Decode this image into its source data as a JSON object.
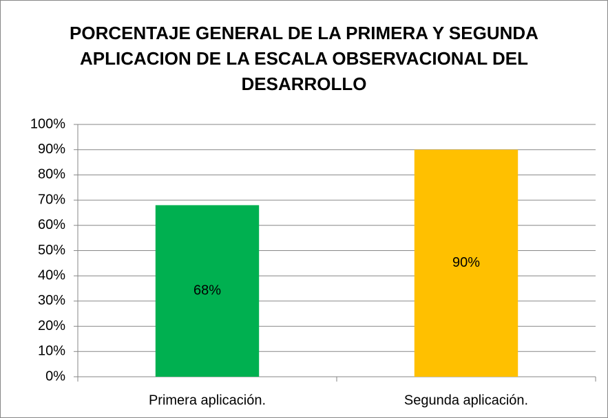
{
  "chart_data": {
    "type": "bar",
    "title": "PORCENTAJE  GENERAL DE LA PRIMERA Y SEGUNDA APLICACION DE LA ESCALA OBSERVACIONAL DEL DESARROLLO",
    "categories": [
      "Primera aplicación.",
      "Segunda aplicación."
    ],
    "values": [
      68,
      90
    ],
    "value_labels": [
      "68%",
      "90%"
    ],
    "colors": [
      "#00b050",
      "#ffc000"
    ],
    "ylim": [
      0,
      100
    ],
    "yticks": [
      {
        "value": 0,
        "label": "0%"
      },
      {
        "value": 10,
        "label": "10%"
      },
      {
        "value": 20,
        "label": "20%"
      },
      {
        "value": 30,
        "label": "30%"
      },
      {
        "value": 40,
        "label": "40%"
      },
      {
        "value": 50,
        "label": "50%"
      },
      {
        "value": 60,
        "label": "60%"
      },
      {
        "value": 70,
        "label": "70%"
      },
      {
        "value": 80,
        "label": "80%"
      },
      {
        "value": 90,
        "label": "90%"
      },
      {
        "value": 100,
        "label": "100%"
      }
    ],
    "grid": true
  }
}
